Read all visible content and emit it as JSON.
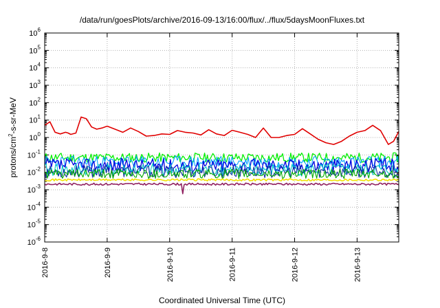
{
  "chart_data": {
    "type": "line",
    "title": "/data/run/goesPlots/archive/2016-09-13/16:00/flux/../flux/5daysMoonFluxes.txt",
    "xlabel": "Coordinated Universal Time (UTC)",
    "ylabel": {
      "base": "protons/cm",
      "sup": "2",
      "rest": "-s-sr-MeV"
    },
    "yscale": "log",
    "ylim": [
      1e-06,
      1000000.0
    ],
    "xlim": [
      "2016-09-08",
      "2016-09-13 16:00"
    ],
    "grid": true,
    "legend": "none",
    "yticks": [
      {
        "base": "10",
        "exp": "6",
        "value": 1000000.0
      },
      {
        "base": "10",
        "exp": "5",
        "value": 100000.0
      },
      {
        "base": "10",
        "exp": "4",
        "value": 10000.0
      },
      {
        "base": "10",
        "exp": "3",
        "value": 1000.0
      },
      {
        "base": "10",
        "exp": "2",
        "value": 100.0
      },
      {
        "base": "10",
        "exp": "1",
        "value": 10.0
      },
      {
        "base": "10",
        "exp": "0",
        "value": 1.0
      },
      {
        "base": "10",
        "exp": "-1",
        "value": 0.1
      },
      {
        "base": "10",
        "exp": "-2",
        "value": 0.01
      },
      {
        "base": "10",
        "exp": "-3",
        "value": 0.001
      },
      {
        "base": "10",
        "exp": "-4",
        "value": 0.0001
      },
      {
        "base": "10",
        "exp": "-5",
        "value": 1e-05
      },
      {
        "base": "10",
        "exp": "-6",
        "value": 1e-06
      }
    ],
    "xticks": [
      {
        "label": "2016-9-8",
        "date": "2016-09-08"
      },
      {
        "label": "2016-9-9",
        "date": "2016-09-09"
      },
      {
        "label": "2016-9-10",
        "date": "2016-09-10"
      },
      {
        "label": "2016-9-11",
        "date": "2016-09-11"
      },
      {
        "label": "2016-9-12",
        "date": "2016-09-12"
      },
      {
        "label": "2016-9-13",
        "date": "2016-09-13"
      }
    ],
    "series": [
      {
        "color": "#e00000",
        "width": 1.6,
        "x": [
          "2016-09-08 00:00",
          "2016-09-08 02:00",
          "2016-09-08 04:00",
          "2016-09-08 06:00",
          "2016-09-08 08:00",
          "2016-09-08 09:00",
          "2016-09-08 10:00",
          "2016-09-08 12:00",
          "2016-09-08 14:00",
          "2016-09-08 16:00",
          "2016-09-08 18:00",
          "2016-09-08 20:00",
          "2016-09-08 22:00",
          "2016-09-09 00:00",
          "2016-09-09 03:00",
          "2016-09-09 06:00",
          "2016-09-09 09:00",
          "2016-09-09 12:00",
          "2016-09-09 15:00",
          "2016-09-09 18:00",
          "2016-09-09 21:00",
          "2016-09-10 00:00",
          "2016-09-10 03:00",
          "2016-09-10 06:00",
          "2016-09-10 09:00",
          "2016-09-10 12:00",
          "2016-09-10 15:00",
          "2016-09-10 18:00",
          "2016-09-10 21:00",
          "2016-09-11 00:00",
          "2016-09-11 03:00",
          "2016-09-11 06:00",
          "2016-09-11 09:00",
          "2016-09-11 12:00",
          "2016-09-11 15:00",
          "2016-09-11 18:00",
          "2016-09-11 21:00",
          "2016-09-12 00:00",
          "2016-09-12 03:00",
          "2016-09-12 06:00",
          "2016-09-12 09:00",
          "2016-09-12 12:00",
          "2016-09-12 15:00",
          "2016-09-12 18:00",
          "2016-09-12 21:00",
          "2016-09-13 00:00",
          "2016-09-13 03:00",
          "2016-09-13 06:00",
          "2016-09-13 09:00",
          "2016-09-13 12:00",
          "2016-09-13 14:00",
          "2016-09-13 16:00"
        ],
        "y": [
          5,
          8,
          2,
          1.6,
          2,
          1.8,
          1.5,
          1.8,
          15,
          12,
          4,
          3,
          3.5,
          4.5,
          3,
          2,
          3.5,
          2.2,
          1.2,
          1.3,
          1.6,
          1.5,
          2.5,
          2.0,
          1.8,
          1.4,
          2.8,
          1.6,
          1.3,
          2.6,
          2.0,
          1.5,
          1.0,
          3.5,
          1.0,
          1.0,
          1.3,
          1.5,
          3.2,
          1.6,
          0.8,
          0.5,
          0.4,
          0.6,
          1.2,
          2.0,
          2.5,
          5,
          2.5,
          0.4,
          0.6,
          2.2
        ]
      },
      {
        "color": "#00ee00",
        "width": 1.3,
        "base": 0.07,
        "amp": 0.55,
        "seed": 11,
        "n": 260
      },
      {
        "color": "#00a0ff",
        "width": 1.1,
        "base": 0.04,
        "amp": 0.7,
        "seed": 23,
        "n": 260
      },
      {
        "color": "#0000dd",
        "width": 1.3,
        "base": 0.025,
        "amp": 0.8,
        "seed": 37,
        "n": 260
      },
      {
        "color": "#00c8c8",
        "width": 1.1,
        "base": 0.014,
        "amp": 0.75,
        "seed": 41,
        "n": 260
      },
      {
        "color": "#1030a0",
        "width": 1.1,
        "base": 0.011,
        "amp": 0.7,
        "seed": 53,
        "n": 260
      },
      {
        "color": "#00aa00",
        "width": 1.1,
        "base": 0.008,
        "amp": 0.55,
        "seed": 61,
        "n": 260
      },
      {
        "color": "#f0e000",
        "width": 1.6,
        "base": 0.0037,
        "amp": 0.12,
        "seed": 71,
        "n": 260
      },
      {
        "color": "#902060",
        "width": 1.6,
        "base": 0.0021,
        "amp": 0.12,
        "seed": 83,
        "n": 260
      }
    ]
  }
}
